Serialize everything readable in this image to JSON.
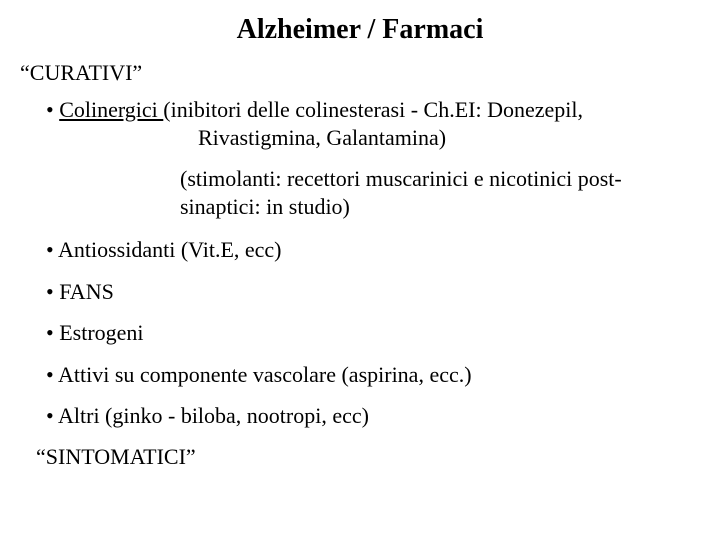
{
  "title": "Alzheimer / Farmaci",
  "section_top": "“CURATIVI”",
  "bullet1_label": "Colinergici ",
  "bullet1_rest": " (inibitori delle colinesterasi - Ch.EI: Donezepil,",
  "bullet1_line2": "Rivastigmina, Galantamina)",
  "paren_block": "(stimolanti: recettori muscarinici e nicotinici post-sinaptici: in studio)",
  "bullet2": "Antiossidanti (Vit.E, ecc)",
  "bullet3": "FANS",
  "bullet4": "Estrogeni",
  "bullet5": "Attivi su componente vascolare (aspirina, ecc.)",
  "bullet6": "Altri (ginko - biloba, nootropi, ecc)",
  "section_bottom": "“SINTOMATICI”"
}
